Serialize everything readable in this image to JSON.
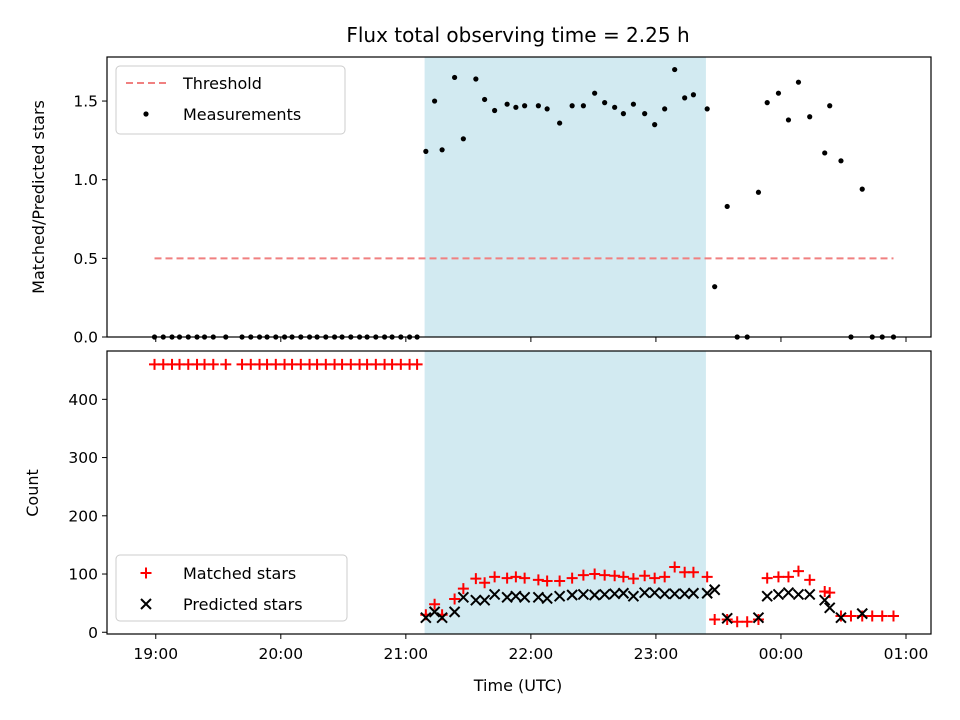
{
  "title": "Flux total observing time = 2.25 h",
  "colors": {
    "threshold": "#f08080",
    "shade": "#add8e6",
    "matched": "#ff0000",
    "predicted": "#000000",
    "measurement": "#000000"
  },
  "chart_data": [
    {
      "type": "scatter",
      "panel": "top",
      "title": "Flux total observing time = 2.25 h",
      "xlabel": "",
      "ylabel": "Matched/Predicted stars",
      "x_unit": "hours UTC",
      "xlim": [
        18.61,
        25.2
      ],
      "ylim": [
        0,
        1.78
      ],
      "xticks": [
        {
          "value": 19,
          "label": "19:00"
        },
        {
          "value": 20,
          "label": "20:00"
        },
        {
          "value": 21,
          "label": "21:00"
        },
        {
          "value": 22,
          "label": "22:00"
        },
        {
          "value": 23,
          "label": "23:00"
        },
        {
          "value": 24,
          "label": "00:00"
        },
        {
          "value": 25,
          "label": "01:00"
        }
      ],
      "yticks": [
        {
          "value": 0,
          "label": "0.0"
        },
        {
          "value": 0.5,
          "label": "0.5"
        },
        {
          "value": 1.0,
          "label": "1.0"
        },
        {
          "value": 1.5,
          "label": "1.5"
        }
      ],
      "shaded_span": [
        21.15,
        23.4
      ],
      "legend": {
        "placement": "upper left",
        "entries": [
          "Threshold",
          "Measurements"
        ]
      },
      "series": [
        {
          "name": "Threshold",
          "style": "dashed-line",
          "x": [
            18.99,
            24.9
          ],
          "y": [
            0.5,
            0.5
          ]
        },
        {
          "name": "Measurements",
          "style": "dot",
          "points": [
            [
              18.99,
              0
            ],
            [
              19.06,
              0
            ],
            [
              19.13,
              0
            ],
            [
              19.19,
              0
            ],
            [
              19.26,
              0
            ],
            [
              19.33,
              0
            ],
            [
              19.39,
              0
            ],
            [
              19.46,
              0
            ],
            [
              19.56,
              0
            ],
            [
              19.69,
              0
            ],
            [
              19.76,
              0
            ],
            [
              19.83,
              0
            ],
            [
              19.89,
              0
            ],
            [
              19.96,
              0
            ],
            [
              20.03,
              0
            ],
            [
              20.09,
              0
            ],
            [
              20.16,
              0
            ],
            [
              20.23,
              0
            ],
            [
              20.29,
              0
            ],
            [
              20.36,
              0
            ],
            [
              20.43,
              0
            ],
            [
              20.49,
              0
            ],
            [
              20.56,
              0
            ],
            [
              20.63,
              0
            ],
            [
              20.69,
              0
            ],
            [
              20.76,
              0
            ],
            [
              20.83,
              0
            ],
            [
              20.89,
              0
            ],
            [
              20.96,
              0
            ],
            [
              21.03,
              0
            ],
            [
              21.09,
              0
            ],
            [
              21.16,
              1.18
            ],
            [
              21.23,
              1.5
            ],
            [
              21.29,
              1.19
            ],
            [
              21.39,
              1.65
            ],
            [
              21.46,
              1.26
            ],
            [
              21.56,
              1.64
            ],
            [
              21.63,
              1.51
            ],
            [
              21.71,
              1.44
            ],
            [
              21.81,
              1.48
            ],
            [
              21.88,
              1.46
            ],
            [
              21.95,
              1.47
            ],
            [
              22.06,
              1.47
            ],
            [
              22.13,
              1.45
            ],
            [
              22.23,
              1.36
            ],
            [
              22.33,
              1.47
            ],
            [
              22.42,
              1.47
            ],
            [
              22.51,
              1.55
            ],
            [
              22.59,
              1.49
            ],
            [
              22.67,
              1.46
            ],
            [
              22.74,
              1.42
            ],
            [
              22.82,
              1.48
            ],
            [
              22.91,
              1.42
            ],
            [
              22.99,
              1.35
            ],
            [
              23.07,
              1.45
            ],
            [
              23.15,
              1.7
            ],
            [
              23.23,
              1.52
            ],
            [
              23.3,
              1.54
            ],
            [
              23.41,
              1.45
            ],
            [
              23.47,
              0.32
            ],
            [
              23.57,
              0.83
            ],
            [
              23.65,
              0
            ],
            [
              23.73,
              0
            ],
            [
              23.82,
              0.92
            ],
            [
              23.89,
              1.49
            ],
            [
              23.98,
              1.55
            ],
            [
              24.06,
              1.38
            ],
            [
              24.14,
              1.62
            ],
            [
              24.23,
              1.4
            ],
            [
              24.35,
              1.17
            ],
            [
              24.39,
              1.47
            ],
            [
              24.48,
              1.12
            ],
            [
              24.56,
              0
            ],
            [
              24.65,
              0.94
            ],
            [
              24.73,
              0
            ],
            [
              24.81,
              0
            ],
            [
              24.9,
              0
            ]
          ]
        }
      ]
    },
    {
      "type": "scatter",
      "panel": "bottom",
      "title": "",
      "xlabel": "Time (UTC)",
      "ylabel": "Count",
      "x_unit": "hours UTC",
      "xlim": [
        18.61,
        25.2
      ],
      "ylim": [
        -3,
        483
      ],
      "xticks": [
        {
          "value": 19,
          "label": "19:00"
        },
        {
          "value": 20,
          "label": "20:00"
        },
        {
          "value": 21,
          "label": "21:00"
        },
        {
          "value": 22,
          "label": "22:00"
        },
        {
          "value": 23,
          "label": "23:00"
        },
        {
          "value": 24,
          "label": "00:00"
        },
        {
          "value": 25,
          "label": "01:00"
        }
      ],
      "yticks": [
        {
          "value": 0,
          "label": "0"
        },
        {
          "value": 100,
          "label": "100"
        },
        {
          "value": 200,
          "label": "200"
        },
        {
          "value": 300,
          "label": "300"
        },
        {
          "value": 400,
          "label": "400"
        }
      ],
      "shaded_span": [
        21.15,
        23.4
      ],
      "legend": {
        "placement": "lower left",
        "entries": [
          "Matched stars",
          "Predicted stars"
        ]
      },
      "series": [
        {
          "name": "Matched stars",
          "style": "plus",
          "points": [
            [
              18.99,
              460
            ],
            [
              19.06,
              460
            ],
            [
              19.13,
              460
            ],
            [
              19.19,
              460
            ],
            [
              19.26,
              460
            ],
            [
              19.33,
              460
            ],
            [
              19.39,
              460
            ],
            [
              19.46,
              460
            ],
            [
              19.56,
              460
            ],
            [
              19.69,
              460
            ],
            [
              19.76,
              460
            ],
            [
              19.83,
              460
            ],
            [
              19.89,
              460
            ],
            [
              19.96,
              460
            ],
            [
              20.03,
              460
            ],
            [
              20.09,
              460
            ],
            [
              20.16,
              460
            ],
            [
              20.23,
              460
            ],
            [
              20.29,
              460
            ],
            [
              20.36,
              460
            ],
            [
              20.43,
              460
            ],
            [
              20.49,
              460
            ],
            [
              20.56,
              460
            ],
            [
              20.63,
              460
            ],
            [
              20.69,
              460
            ],
            [
              20.76,
              460
            ],
            [
              20.83,
              460
            ],
            [
              20.89,
              460
            ],
            [
              20.96,
              460
            ],
            [
              21.03,
              460
            ],
            [
              21.09,
              460
            ],
            [
              21.16,
              30
            ],
            [
              21.23,
              48
            ],
            [
              21.29,
              30
            ],
            [
              21.39,
              57
            ],
            [
              21.46,
              75
            ],
            [
              21.56,
              92
            ],
            [
              21.63,
              85
            ],
            [
              21.71,
              95
            ],
            [
              21.81,
              93
            ],
            [
              21.88,
              95
            ],
            [
              21.95,
              93
            ],
            [
              22.06,
              90
            ],
            [
              22.13,
              88
            ],
            [
              22.23,
              88
            ],
            [
              22.33,
              93
            ],
            [
              22.42,
              98
            ],
            [
              22.51,
              100
            ],
            [
              22.59,
              98
            ],
            [
              22.67,
              97
            ],
            [
              22.74,
              95
            ],
            [
              22.82,
              92
            ],
            [
              22.91,
              97
            ],
            [
              22.99,
              93
            ],
            [
              23.07,
              95
            ],
            [
              23.15,
              112
            ],
            [
              23.23,
              103
            ],
            [
              23.3,
              103
            ],
            [
              23.41,
              95
            ],
            [
              23.47,
              22
            ],
            [
              23.57,
              22
            ],
            [
              23.65,
              18
            ],
            [
              23.73,
              18
            ],
            [
              23.82,
              22
            ],
            [
              23.89,
              93
            ],
            [
              23.98,
              95
            ],
            [
              24.06,
              95
            ],
            [
              24.14,
              105
            ],
            [
              24.23,
              90
            ],
            [
              24.35,
              70
            ],
            [
              24.39,
              68
            ],
            [
              24.48,
              28
            ],
            [
              24.56,
              28
            ],
            [
              24.65,
              28
            ],
            [
              24.73,
              28
            ],
            [
              24.81,
              28
            ],
            [
              24.9,
              28
            ]
          ]
        },
        {
          "name": "Predicted stars",
          "style": "x",
          "points": [
            [
              21.16,
              25
            ],
            [
              21.23,
              35
            ],
            [
              21.29,
              25
            ],
            [
              21.39,
              35
            ],
            [
              21.46,
              60
            ],
            [
              21.56,
              55
            ],
            [
              21.63,
              55
            ],
            [
              21.71,
              65
            ],
            [
              21.81,
              60
            ],
            [
              21.88,
              62
            ],
            [
              21.95,
              60
            ],
            [
              22.06,
              60
            ],
            [
              22.13,
              58
            ],
            [
              22.23,
              62
            ],
            [
              22.33,
              64
            ],
            [
              22.42,
              65
            ],
            [
              22.51,
              64
            ],
            [
              22.59,
              65
            ],
            [
              22.67,
              66
            ],
            [
              22.74,
              67
            ],
            [
              22.82,
              62
            ],
            [
              22.91,
              68
            ],
            [
              22.99,
              68
            ],
            [
              23.07,
              66
            ],
            [
              23.15,
              66
            ],
            [
              23.23,
              66
            ],
            [
              23.3,
              67
            ],
            [
              23.41,
              67
            ],
            [
              23.47,
              73
            ],
            [
              23.57,
              24
            ],
            [
              23.82,
              25
            ],
            [
              23.89,
              62
            ],
            [
              23.98,
              65
            ],
            [
              24.06,
              68
            ],
            [
              24.14,
              65
            ],
            [
              24.23,
              65
            ],
            [
              24.35,
              55
            ],
            [
              24.39,
              42
            ],
            [
              24.48,
              25
            ],
            [
              24.65,
              32
            ]
          ]
        }
      ]
    }
  ]
}
